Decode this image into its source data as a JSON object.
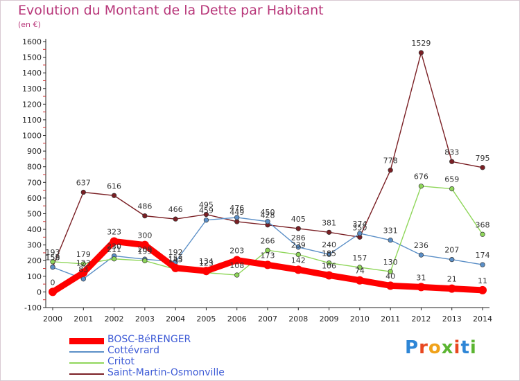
{
  "title": "Evolution du Montant de la Dette par Habitant",
  "unit": "(en €)",
  "logo": "Proxiti",
  "chart_data": {
    "type": "line",
    "ylim": [
      -100,
      1600
    ],
    "ytick_step": 100,
    "grid": false,
    "legend_placement": "bottom-left",
    "x": [
      "2000",
      "2001",
      "2002",
      "2003",
      "2004",
      "2005",
      "2006",
      "2007",
      "2008",
      "2009",
      "2010",
      "2011",
      "2012",
      "2013",
      "2014"
    ],
    "series": [
      {
        "name": "BOSC-BéRENGER",
        "color": "#ff0000",
        "values": [
          0,
          123,
          323,
          300,
          153,
          134,
          203,
          173,
          142,
          106,
          74,
          40,
          31,
          21,
          11
        ]
      },
      {
        "name": "Cottévrard",
        "color": "#5b8fc7",
        "values": [
          158,
          83,
          230,
          209,
          192,
          459,
          476,
          450,
          286,
          240,
          374,
          331,
          236,
          207,
          174
        ]
      },
      {
        "name": "Critot",
        "color": "#8fd65a",
        "values": [
          193,
          179,
          211,
          199,
          145,
          123,
          108,
          266,
          239,
          185,
          157,
          130,
          676,
          659,
          368
        ]
      },
      {
        "name": "Saint-Martin-Osmonville",
        "color": "#7a1f24",
        "values": [
          159,
          637,
          616,
          486,
          466,
          495,
          449,
          428,
          405,
          381,
          350,
          778,
          1529,
          833,
          795
        ]
      }
    ]
  }
}
